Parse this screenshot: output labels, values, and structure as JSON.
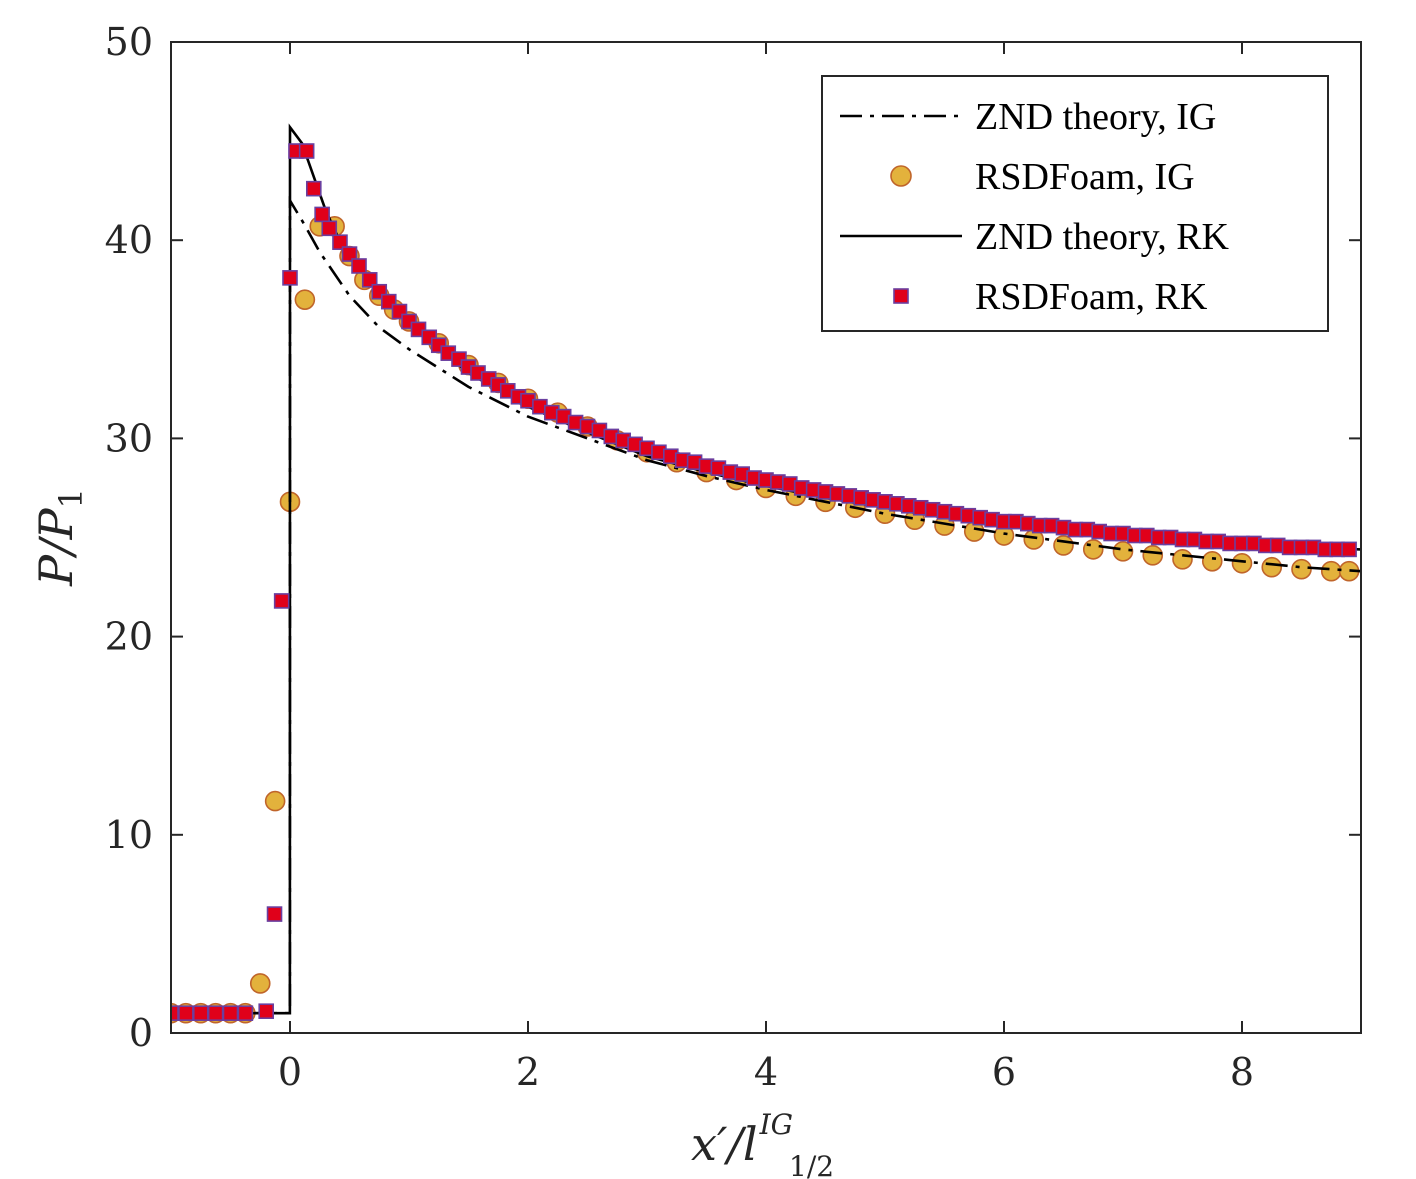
{
  "chart_data": {
    "type": "line",
    "xlabel": {
      "main": "x′/l",
      "sup": "IG",
      "sub": "1/2"
    },
    "ylabel": {
      "main": "P/P",
      "sub": "1"
    },
    "xlim": [
      -1,
      9
    ],
    "ylim": [
      0,
      50
    ],
    "x_ticks": [
      0,
      2,
      4,
      6,
      8
    ],
    "y_ticks": [
      0,
      10,
      20,
      30,
      40,
      50
    ],
    "grid": false,
    "legend_position": "top-right",
    "legend_order": [
      "znd_ig",
      "rsd_ig",
      "znd_rk",
      "rsd_rk"
    ],
    "series": {
      "znd_ig": {
        "name": "ZND theory, IG",
        "style": "dash-dot",
        "color": "#000000",
        "points": [
          [
            -1,
            1
          ],
          [
            -0.001,
            1
          ],
          [
            0,
            42
          ],
          [
            0.12,
            40.8
          ],
          [
            0.25,
            39.4
          ],
          [
            0.5,
            37.2
          ],
          [
            0.75,
            35.6
          ],
          [
            1,
            34.5
          ],
          [
            1.5,
            32.6
          ],
          [
            2,
            31.1
          ],
          [
            2.5,
            30.0
          ],
          [
            3,
            28.9
          ],
          [
            3.5,
            28.1
          ],
          [
            4,
            27.4
          ],
          [
            4.5,
            26.8
          ],
          [
            5,
            26.2
          ],
          [
            5.5,
            25.7
          ],
          [
            6,
            25.2
          ],
          [
            6.5,
            24.8
          ],
          [
            7,
            24.4
          ],
          [
            7.5,
            24.1
          ],
          [
            8,
            23.8
          ],
          [
            8.5,
            23.5
          ],
          [
            9,
            23.3
          ]
        ]
      },
      "rsd_ig": {
        "name": "RSDFoam, IG",
        "marker": "circle",
        "fill": "#E3B23C",
        "edge": "#C0652A",
        "points": [
          [
            -1,
            1
          ],
          [
            -0.875,
            1
          ],
          [
            -0.75,
            1
          ],
          [
            -0.625,
            1
          ],
          [
            -0.5,
            1
          ],
          [
            -0.375,
            1
          ],
          [
            -0.25,
            2.5
          ],
          [
            -0.125,
            11.7
          ],
          [
            0,
            26.8
          ],
          [
            0.125,
            37
          ],
          [
            0.25,
            40.7
          ],
          [
            0.375,
            40.7
          ],
          [
            0.5,
            39.2
          ],
          [
            0.625,
            38
          ],
          [
            0.75,
            37.2
          ],
          [
            0.875,
            36.5
          ],
          [
            1,
            35.9
          ],
          [
            1.25,
            34.8
          ],
          [
            1.5,
            33.7
          ],
          [
            1.75,
            32.8
          ],
          [
            2,
            32
          ],
          [
            2.25,
            31.3
          ],
          [
            2.5,
            30.6
          ],
          [
            2.75,
            29.9
          ],
          [
            3,
            29.3
          ],
          [
            3.25,
            28.8
          ],
          [
            3.5,
            28.3
          ],
          [
            3.75,
            27.9
          ],
          [
            4,
            27.5
          ],
          [
            4.25,
            27.1
          ],
          [
            4.5,
            26.8
          ],
          [
            4.75,
            26.5
          ],
          [
            5,
            26.2
          ],
          [
            5.25,
            25.9
          ],
          [
            5.5,
            25.6
          ],
          [
            5.75,
            25.3
          ],
          [
            6,
            25.1
          ],
          [
            6.25,
            24.9
          ],
          [
            6.5,
            24.6
          ],
          [
            6.75,
            24.4
          ],
          [
            7,
            24.3
          ],
          [
            7.25,
            24.1
          ],
          [
            7.5,
            23.9
          ],
          [
            7.75,
            23.8
          ],
          [
            8,
            23.7
          ],
          [
            8.25,
            23.5
          ],
          [
            8.5,
            23.4
          ],
          [
            8.75,
            23.3
          ],
          [
            8.9,
            23.3
          ]
        ]
      },
      "znd_rk": {
        "name": "ZND theory, RK",
        "style": "solid",
        "color": "#000000",
        "points": [
          [
            -1,
            1
          ],
          [
            -0.001,
            1
          ],
          [
            0,
            45.7
          ],
          [
            0.1,
            44.9
          ],
          [
            0.2,
            43.2
          ],
          [
            0.3,
            41.5
          ],
          [
            0.4,
            40.2
          ],
          [
            0.5,
            39.2
          ],
          [
            0.75,
            37.4
          ],
          [
            1,
            35.8
          ],
          [
            1.5,
            33.3
          ],
          [
            2,
            31.6
          ],
          [
            2.5,
            30.3
          ],
          [
            3,
            29.1
          ],
          [
            3.5,
            28.3
          ],
          [
            4,
            27.6
          ],
          [
            4.5,
            27
          ],
          [
            5,
            26.5
          ],
          [
            5.5,
            26
          ],
          [
            6,
            25.6
          ],
          [
            6.5,
            25.3
          ],
          [
            7,
            25
          ],
          [
            7.5,
            24.8
          ],
          [
            8,
            24.6
          ],
          [
            8.5,
            24.5
          ],
          [
            9,
            24.4
          ]
        ]
      },
      "rsd_rk": {
        "name": "RSDFoam, RK",
        "marker": "square",
        "fill": "#E0001A",
        "edge": "#6A3FA0",
        "points": [
          [
            -1,
            1
          ],
          [
            -0.875,
            1
          ],
          [
            -0.75,
            1
          ],
          [
            -0.625,
            1
          ],
          [
            -0.5,
            1
          ],
          [
            -0.375,
            1
          ],
          [
            -0.2,
            1.1
          ],
          [
            -0.13,
            6
          ],
          [
            -0.07,
            21.8
          ],
          [
            0,
            38.1
          ],
          [
            0.05,
            44.5
          ],
          [
            0.14,
            44.5
          ],
          [
            0.2,
            42.6
          ],
          [
            0.27,
            41.3
          ],
          [
            0.33,
            40.6
          ],
          [
            0.42,
            39.9
          ],
          [
            0.5,
            39.3
          ],
          [
            0.58,
            38.7
          ],
          [
            0.67,
            38
          ],
          [
            0.75,
            37.4
          ],
          [
            0.83,
            36.9
          ],
          [
            0.92,
            36.4
          ],
          [
            1,
            35.9
          ],
          [
            1.08,
            35.5
          ],
          [
            1.17,
            35.1
          ],
          [
            1.25,
            34.7
          ],
          [
            1.33,
            34.3
          ],
          [
            1.42,
            34
          ],
          [
            1.5,
            33.6
          ],
          [
            1.58,
            33.3
          ],
          [
            1.67,
            33
          ],
          [
            1.75,
            32.7
          ],
          [
            1.83,
            32.4
          ],
          [
            1.92,
            32.1
          ],
          [
            2,
            31.9
          ],
          [
            2.1,
            31.6
          ],
          [
            2.2,
            31.3
          ],
          [
            2.3,
            31.1
          ],
          [
            2.4,
            30.8
          ],
          [
            2.5,
            30.6
          ],
          [
            2.6,
            30.4
          ],
          [
            2.7,
            30.1
          ],
          [
            2.8,
            29.9
          ],
          [
            2.9,
            29.7
          ],
          [
            3,
            29.5
          ],
          [
            3.1,
            29.3
          ],
          [
            3.2,
            29.1
          ],
          [
            3.3,
            28.9
          ],
          [
            3.4,
            28.8
          ],
          [
            3.5,
            28.6
          ],
          [
            3.6,
            28.5
          ],
          [
            3.7,
            28.3
          ],
          [
            3.8,
            28.2
          ],
          [
            3.9,
            28
          ],
          [
            4,
            27.9
          ],
          [
            4.1,
            27.8
          ],
          [
            4.2,
            27.7
          ],
          [
            4.3,
            27.5
          ],
          [
            4.4,
            27.4
          ],
          [
            4.5,
            27.3
          ],
          [
            4.6,
            27.2
          ],
          [
            4.7,
            27.1
          ],
          [
            4.8,
            27
          ],
          [
            4.9,
            26.9
          ],
          [
            5,
            26.8
          ],
          [
            5.1,
            26.7
          ],
          [
            5.2,
            26.6
          ],
          [
            5.3,
            26.5
          ],
          [
            5.4,
            26.4
          ],
          [
            5.5,
            26.3
          ],
          [
            5.6,
            26.2
          ],
          [
            5.7,
            26.1
          ],
          [
            5.8,
            26
          ],
          [
            5.9,
            25.9
          ],
          [
            6,
            25.8
          ],
          [
            6.1,
            25.8
          ],
          [
            6.2,
            25.7
          ],
          [
            6.3,
            25.6
          ],
          [
            6.4,
            25.6
          ],
          [
            6.5,
            25.5
          ],
          [
            6.6,
            25.4
          ],
          [
            6.7,
            25.4
          ],
          [
            6.8,
            25.3
          ],
          [
            6.9,
            25.2
          ],
          [
            7,
            25.2
          ],
          [
            7.1,
            25.1
          ],
          [
            7.2,
            25.1
          ],
          [
            7.3,
            25
          ],
          [
            7.4,
            25
          ],
          [
            7.5,
            24.9
          ],
          [
            7.6,
            24.9
          ],
          [
            7.7,
            24.8
          ],
          [
            7.8,
            24.8
          ],
          [
            7.9,
            24.7
          ],
          [
            8,
            24.7
          ],
          [
            8.1,
            24.7
          ],
          [
            8.2,
            24.6
          ],
          [
            8.3,
            24.6
          ],
          [
            8.4,
            24.5
          ],
          [
            8.5,
            24.5
          ],
          [
            8.6,
            24.5
          ],
          [
            8.7,
            24.4
          ],
          [
            8.8,
            24.4
          ],
          [
            8.9,
            24.4
          ]
        ]
      }
    }
  }
}
